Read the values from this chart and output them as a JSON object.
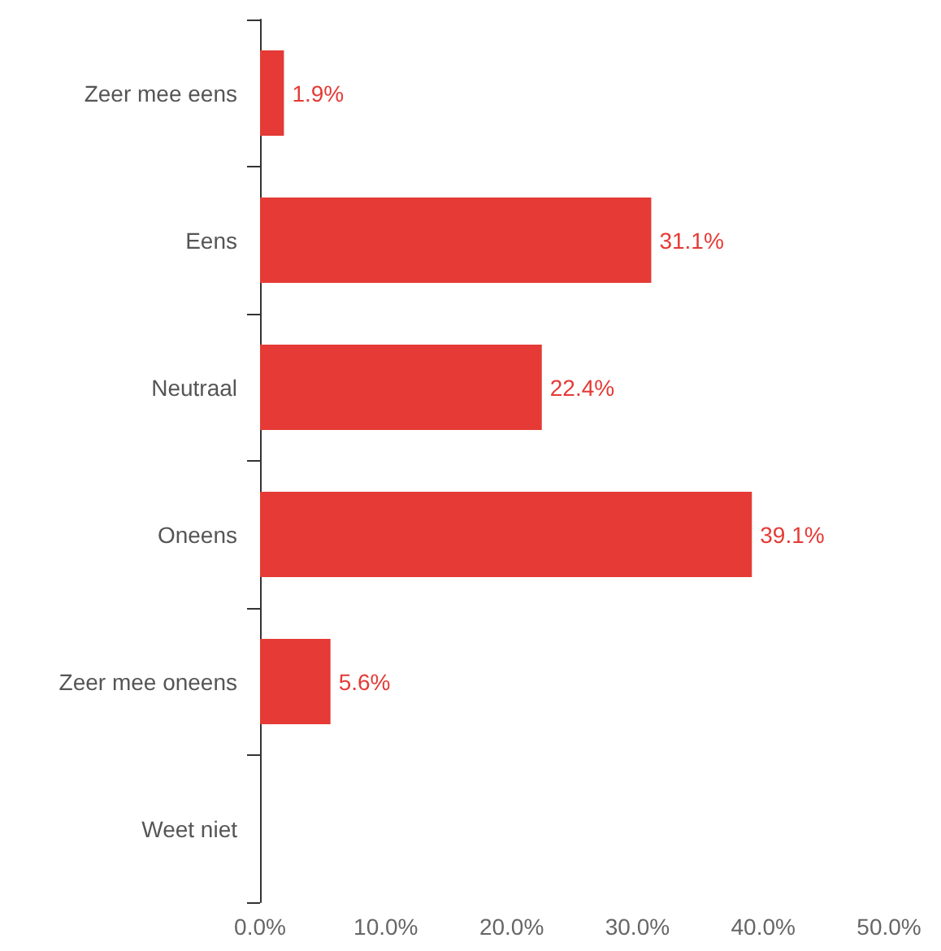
{
  "chart_data": {
    "type": "bar",
    "orientation": "horizontal",
    "categories": [
      "Zeer mee eens",
      "Eens",
      "Neutraal",
      "Oneens",
      "Zeer mee oneens",
      "Weet niet"
    ],
    "values": [
      1.9,
      31.1,
      22.4,
      39.1,
      5.6,
      0
    ],
    "value_labels": [
      "1.9%",
      "31.1%",
      "22.4%",
      "39.1%",
      "5.6%",
      null
    ],
    "color": "#e53a35",
    "xlim": [
      0,
      50
    ],
    "xticks": [
      {
        "value": 0,
        "label": "0.0%"
      },
      {
        "value": 10,
        "label": "10.0%"
      },
      {
        "value": 20,
        "label": "20.0%"
      },
      {
        "value": 30,
        "label": "30.0%"
      },
      {
        "value": 40,
        "label": "40.0%"
      },
      {
        "value": 50,
        "label": "50.0%"
      }
    ],
    "grid": false
  }
}
